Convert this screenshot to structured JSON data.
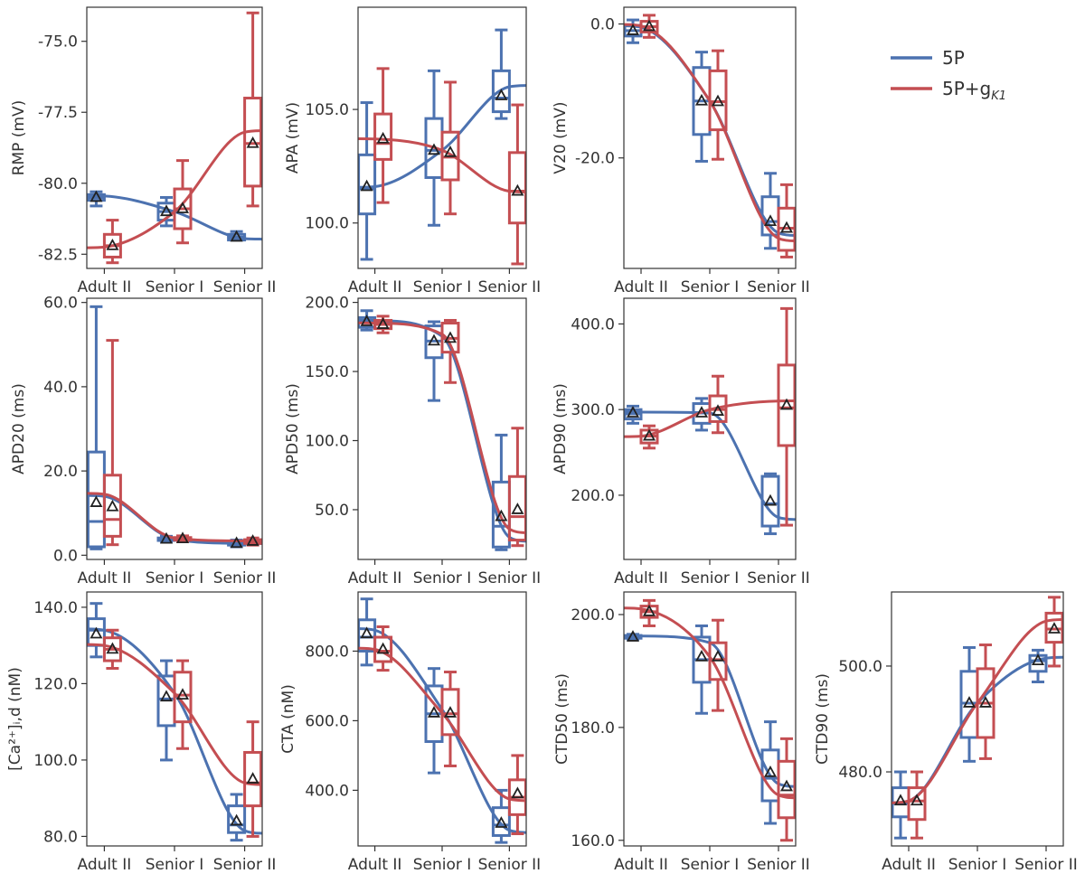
{
  "colors": {
    "5P": "#4c72b0",
    "5P+gK1": "#c44e52",
    "mean_marker": "#222222"
  },
  "legend": {
    "items": [
      {
        "key": "5P",
        "label": "5P"
      },
      {
        "key": "5P+gK1",
        "label": "5P+g",
        "subscript": "K1"
      }
    ]
  },
  "chart_data": [
    {
      "type": "box",
      "panel": "RMP",
      "ylabel": "RMP (mV)",
      "ylim": [
        -83.0,
        -73.8
      ],
      "yticks": [
        -82.5,
        -80.0,
        -77.5,
        -75.0
      ],
      "ytick_labels": [
        "-82.5",
        "-80.0",
        "-77.5",
        "-75.0"
      ],
      "categories": [
        "Adult II",
        "Senior I",
        "Senior II"
      ],
      "series": [
        {
          "name": "5P",
          "boxes": [
            {
              "whislo": -80.8,
              "q1": -80.6,
              "median": -80.5,
              "q3": -80.4,
              "whishi": -80.3,
              "mean": -80.5
            },
            {
              "whislo": -81.5,
              "q1": -81.3,
              "median": -81.0,
              "q3": -80.7,
              "whishi": -80.5,
              "mean": -81.0
            },
            {
              "whislo": -82.0,
              "q1": -82.0,
              "median": -81.9,
              "q3": -81.8,
              "whishi": -81.7,
              "mean": -81.9
            }
          ],
          "trend": [
            -80.45,
            -81.0,
            -81.95
          ]
        },
        {
          "name": "5P+gK1",
          "boxes": [
            {
              "whislo": -82.8,
              "q1": -82.6,
              "median": -82.2,
              "q3": -81.8,
              "whishi": -81.3,
              "mean": -82.2
            },
            {
              "whislo": -82.1,
              "q1": -81.6,
              "median": -80.9,
              "q3": -80.2,
              "whishi": -79.2,
              "mean": -80.9
            },
            {
              "whislo": -80.8,
              "q1": -80.1,
              "median": -78.6,
              "q3": -77.0,
              "whishi": -74.0,
              "mean": -78.6
            }
          ],
          "trend": [
            -82.25,
            -81.0,
            -78.2
          ]
        }
      ]
    },
    {
      "type": "box",
      "panel": "APA",
      "ylabel": "APA (mV)",
      "ylim": [
        98.0,
        109.5
      ],
      "yticks": [
        100.0,
        105.0
      ],
      "ytick_labels": [
        "100.0",
        "105.0"
      ],
      "categories": [
        "Adult II",
        "Senior I",
        "Senior II"
      ],
      "series": [
        {
          "name": "5P",
          "boxes": [
            {
              "whislo": 98.4,
              "q1": 100.4,
              "median": 101.5,
              "q3": 103.0,
              "whishi": 105.3,
              "mean": 101.6
            },
            {
              "whislo": 99.9,
              "q1": 102.0,
              "median": 103.2,
              "q3": 104.6,
              "whishi": 106.7,
              "mean": 103.2
            },
            {
              "whislo": 104.6,
              "q1": 104.9,
              "median": 105.5,
              "q3": 106.7,
              "whishi": 108.5,
              "mean": 105.6
            }
          ],
          "trend": [
            101.6,
            103.2,
            106.0
          ]
        },
        {
          "name": "5P+gK1",
          "boxes": [
            {
              "whislo": 100.9,
              "q1": 102.8,
              "median": 103.5,
              "q3": 104.8,
              "whishi": 106.8,
              "mean": 103.7
            },
            {
              "whislo": 100.4,
              "q1": 101.9,
              "median": 102.9,
              "q3": 104.0,
              "whishi": 106.2,
              "mean": 103.1
            },
            {
              "whislo": 98.2,
              "q1": 100.0,
              "median": 101.4,
              "q3": 103.1,
              "whishi": 105.2,
              "mean": 101.4
            }
          ],
          "trend": [
            103.7,
            103.2,
            101.4
          ]
        }
      ]
    },
    {
      "type": "box",
      "panel": "V20",
      "ylabel": "V20 (mV)",
      "ylim": [
        -36.5,
        2.5
      ],
      "yticks": [
        -20.0,
        0.0
      ],
      "ytick_labels": [
        "-20.0",
        "0.0"
      ],
      "categories": [
        "Adult II",
        "Senior I",
        "Senior II"
      ],
      "series": [
        {
          "name": "5P",
          "boxes": [
            {
              "whislo": -2.8,
              "q1": -1.8,
              "median": -1.0,
              "q3": -0.2,
              "whishi": 0.6,
              "mean": -1.0
            },
            {
              "whislo": -20.5,
              "q1": -16.5,
              "median": -11.5,
              "q3": -6.5,
              "whishi": -4.2,
              "mean": -11.5
            },
            {
              "whislo": -33.5,
              "q1": -31.5,
              "median": -29.5,
              "q3": -25.8,
              "whishi": -22.3,
              "mean": -29.5
            }
          ],
          "trend": [
            -0.5,
            -11.5,
            -31.2
          ]
        },
        {
          "name": "5P+gK1",
          "boxes": [
            {
              "whislo": -2.0,
              "q1": -1.2,
              "median": -0.4,
              "q3": 0.4,
              "whishi": 1.3,
              "mean": -0.4
            },
            {
              "whislo": -20.2,
              "q1": -15.8,
              "median": -11.6,
              "q3": -7.0,
              "whishi": -4.0,
              "mean": -11.6
            },
            {
              "whislo": -34.8,
              "q1": -33.8,
              "median": -30.5,
              "q3": -27.5,
              "whishi": -24.0,
              "mean": -30.5
            }
          ],
          "trend": [
            -0.3,
            -11.5,
            -32.0
          ]
        }
      ]
    },
    {
      "type": "box",
      "panel": "APD20",
      "ylabel": "APD20 (ms)",
      "ylim": [
        -1.0,
        61.0
      ],
      "yticks": [
        0.0,
        20.0,
        40.0,
        60.0
      ],
      "ytick_labels": [
        "0.0",
        "20.0",
        "40.0",
        "60.0"
      ],
      "categories": [
        "Adult II",
        "Senior I",
        "Senior II"
      ],
      "series": [
        {
          "name": "5P",
          "boxes": [
            {
              "whislo": 1.5,
              "q1": 2.0,
              "median": 8.0,
              "q3": 24.5,
              "whishi": 59.0,
              "mean": 12.5
            },
            {
              "whislo": 3.2,
              "q1": 3.5,
              "median": 3.8,
              "q3": 4.1,
              "whishi": 4.5,
              "mean": 3.8
            },
            {
              "whislo": 2.0,
              "q1": 2.4,
              "median": 2.8,
              "q3": 3.2,
              "whishi": 3.6,
              "mean": 2.8
            }
          ],
          "trend": [
            14.0,
            3.8,
            2.8
          ]
        },
        {
          "name": "5P+gK1",
          "boxes": [
            {
              "whislo": 2.5,
              "q1": 4.5,
              "median": 8.5,
              "q3": 19.0,
              "whishi": 51.0,
              "mean": 11.5
            },
            {
              "whislo": 3.2,
              "q1": 3.6,
              "median": 3.9,
              "q3": 4.2,
              "whishi": 4.6,
              "mean": 3.9
            },
            {
              "whislo": 2.4,
              "q1": 2.8,
              "median": 3.3,
              "q3": 3.7,
              "whishi": 4.1,
              "mean": 3.3
            }
          ],
          "trend": [
            14.5,
            4.1,
            3.4
          ]
        }
      ]
    },
    {
      "type": "box",
      "panel": "APD50",
      "ylabel": "APD50 (ms)",
      "ylim": [
        14.0,
        203.0
      ],
      "yticks": [
        50.0,
        100.0,
        150.0,
        200.0
      ],
      "ytick_labels": [
        "50.0",
        "100.0",
        "150.0",
        "200.0"
      ],
      "categories": [
        "Adult II",
        "Senior I",
        "Senior II"
      ],
      "series": [
        {
          "name": "5P",
          "boxes": [
            {
              "whislo": 180.0,
              "q1": 182.0,
              "median": 185.5,
              "q3": 189.0,
              "whishi": 194.0,
              "mean": 186.0
            },
            {
              "whislo": 129.0,
              "q1": 160.0,
              "median": 172.0,
              "q3": 183.0,
              "whishi": 186.0,
              "mean": 172.0
            },
            {
              "whislo": 21.0,
              "q1": 23.0,
              "median": 38.0,
              "q3": 70.0,
              "whishi": 104.0,
              "mean": 45.0
            }
          ],
          "trend": [
            187.0,
            175.5,
            30.0
          ]
        },
        {
          "name": "5P+gK1",
          "boxes": [
            {
              "whislo": 178.0,
              "q1": 181.0,
              "median": 184.0,
              "q3": 187.0,
              "whishi": 190.0,
              "mean": 184.0
            },
            {
              "whislo": 142.0,
              "q1": 164.0,
              "median": 174.0,
              "q3": 185.0,
              "whishi": 187.0,
              "mean": 174.0
            },
            {
              "whislo": 24.0,
              "q1": 28.0,
              "median": 45.0,
              "q3": 74.0,
              "whishi": 109.0,
              "mean": 50.0
            }
          ],
          "trend": [
            185.0,
            177.0,
            36.0
          ]
        }
      ]
    },
    {
      "type": "box",
      "panel": "APD90",
      "ylabel": "APD90 (ms)",
      "ylim": [
        125.0,
        430.0
      ],
      "yticks": [
        200.0,
        300.0,
        400.0
      ],
      "ytick_labels": [
        "200.0",
        "300.0",
        "400.0"
      ],
      "categories": [
        "Adult II",
        "Senior I",
        "Senior II"
      ],
      "series": [
        {
          "name": "5P",
          "boxes": [
            {
              "whislo": 284.0,
              "q1": 289.0,
              "median": 295.0,
              "q3": 300.0,
              "whishi": 304.0,
              "mean": 296.0
            },
            {
              "whislo": 276.0,
              "q1": 284.0,
              "median": 296.0,
              "q3": 307.0,
              "whishi": 313.0,
              "mean": 296.0
            },
            {
              "whislo": 155.0,
              "q1": 164.0,
              "median": 190.0,
              "q3": 222.0,
              "whishi": 225.0,
              "mean": 193.0
            }
          ],
          "trend": [
            297.0,
            296.0,
            174.0
          ]
        },
        {
          "name": "5P+gK1",
          "boxes": [
            {
              "whislo": 255.0,
              "q1": 261.0,
              "median": 269.0,
              "q3": 276.0,
              "whishi": 281.0,
              "mean": 269.0
            },
            {
              "whislo": 273.0,
              "q1": 286.0,
              "median": 300.0,
              "q3": 316.0,
              "whishi": 339.0,
              "mean": 298.0
            },
            {
              "whislo": 165.0,
              "q1": 258.0,
              "median": 302.0,
              "q3": 352.0,
              "whishi": 418.0,
              "mean": 305.0
            }
          ],
          "trend": [
            269.0,
            300.0,
            310.0
          ]
        }
      ]
    },
    {
      "type": "box",
      "panel": "CaD",
      "ylabel": "[Ca²⁺]ᵢ,d (nM)",
      "ylim": [
        77.5,
        144.0
      ],
      "yticks": [
        80.0,
        100.0,
        120.0,
        140.0
      ],
      "ytick_labels": [
        "80.0",
        "100.0",
        "120.0",
        "140.0"
      ],
      "categories": [
        "Adult II",
        "Senior I",
        "Senior II"
      ],
      "series": [
        {
          "name": "5P",
          "boxes": [
            {
              "whislo": 127.0,
              "q1": 130.0,
              "median": 134.0,
              "q3": 137.0,
              "whishi": 141.0,
              "mean": 133.0
            },
            {
              "whislo": 100.0,
              "q1": 109.0,
              "median": 116.0,
              "q3": 122.0,
              "whishi": 126.0,
              "mean": 116.5
            },
            {
              "whislo": 79.0,
              "q1": 81.0,
              "median": 83.0,
              "q3": 88.0,
              "whishi": 91.0,
              "mean": 84.0
            }
          ],
          "trend": [
            134.0,
            117.5,
            81.5
          ]
        },
        {
          "name": "5P+gK1",
          "boxes": [
            {
              "whislo": 124.0,
              "q1": 126.0,
              "median": 129.0,
              "q3": 132.0,
              "whishi": 134.0,
              "mean": 129.0
            },
            {
              "whislo": 103.0,
              "q1": 110.0,
              "median": 117.0,
              "q3": 123.0,
              "whishi": 126.0,
              "mean": 117.0
            },
            {
              "whislo": 80.0,
              "q1": 88.0,
              "median": 94.0,
              "q3": 102.0,
              "whishi": 110.0,
              "mean": 95.0
            }
          ],
          "trend": [
            130.0,
            117.5,
            94.0
          ]
        }
      ]
    },
    {
      "type": "box",
      "panel": "CTA",
      "ylabel": "CTA (nM)",
      "ylim": [
        240.0,
        970.0
      ],
      "yticks": [
        400.0,
        600.0,
        800.0
      ],
      "ytick_labels": [
        "400.0",
        "600.0",
        "800.0"
      ],
      "categories": [
        "Adult II",
        "Senior I",
        "Senior II"
      ],
      "series": [
        {
          "name": "5P",
          "boxes": [
            {
              "whislo": 760.0,
              "q1": 800.0,
              "median": 840.0,
              "q3": 890.0,
              "whishi": 950.0,
              "mean": 850.0
            },
            {
              "whislo": 450.0,
              "q1": 540.0,
              "median": 620.0,
              "q3": 700.0,
              "whishi": 750.0,
              "mean": 622.0
            },
            {
              "whislo": 250.0,
              "q1": 270.0,
              "median": 300.0,
              "q3": 350.0,
              "whishi": 400.0,
              "mean": 305.0
            }
          ],
          "trend": [
            860.0,
            632.0,
            285.0
          ]
        },
        {
          "name": "5P+gK1",
          "boxes": [
            {
              "whislo": 745.0,
              "q1": 770.0,
              "median": 800.0,
              "q3": 840.0,
              "whishi": 870.0,
              "mean": 805.0
            },
            {
              "whislo": 470.0,
              "q1": 560.0,
              "median": 620.0,
              "q3": 690.0,
              "whishi": 740.0,
              "mean": 622.0
            },
            {
              "whislo": 275.0,
              "q1": 330.0,
              "median": 380.0,
              "q3": 430.0,
              "whishi": 500.0,
              "mean": 390.0
            }
          ],
          "trend": [
            805.0,
            622.0,
            375.0
          ]
        }
      ]
    },
    {
      "type": "box",
      "panel": "CTD50",
      "ylabel": "CTD50 (ms)",
      "ylim": [
        159.0,
        204.0
      ],
      "yticks": [
        160.0,
        180.0,
        200.0
      ],
      "ytick_labels": [
        "160.0",
        "180.0",
        "200.0"
      ],
      "categories": [
        "Adult II",
        "Senior I",
        "Senior II"
      ],
      "series": [
        {
          "name": "5P",
          "boxes": [
            {
              "whislo": 195.6,
              "q1": 195.8,
              "median": 196.0,
              "q3": 196.3,
              "whishi": 196.5,
              "mean": 196.0
            },
            {
              "whislo": 182.5,
              "q1": 188.0,
              "median": 192.0,
              "q3": 196.0,
              "whishi": 198.0,
              "mean": 192.5
            },
            {
              "whislo": 163.0,
              "q1": 167.0,
              "median": 171.0,
              "q3": 176.0,
              "whishi": 181.0,
              "mean": 172.0
            }
          ],
          "trend": [
            196.2,
            195.0,
            170.0
          ]
        },
        {
          "name": "5P+gK1",
          "boxes": [
            {
              "whislo": 198.0,
              "q1": 199.5,
              "median": 200.5,
              "q3": 201.5,
              "whishi": 202.5,
              "mean": 200.5
            },
            {
              "whislo": 183.0,
              "q1": 188.5,
              "median": 192.0,
              "q3": 195.0,
              "whishi": 199.0,
              "mean": 192.5
            },
            {
              "whislo": 160.0,
              "q1": 164.0,
              "median": 168.0,
              "q3": 174.0,
              "whishi": 178.0,
              "mean": 169.5
            }
          ],
          "trend": [
            201.0,
            192.5,
            168.0
          ]
        }
      ]
    },
    {
      "type": "box",
      "panel": "CTD90",
      "ylabel": "CTD90 (ms)",
      "ylim": [
        466.0,
        514.0
      ],
      "yticks": [
        480.0,
        500.0
      ],
      "ytick_labels": [
        "480.0",
        "500.0"
      ],
      "categories": [
        "Adult II",
        "Senior I",
        "Senior II"
      ],
      "series": [
        {
          "name": "5P",
          "boxes": [
            {
              "whislo": 467.5,
              "q1": 471.5,
              "median": 474.0,
              "q3": 477.0,
              "whishi": 480.0,
              "mean": 474.5
            },
            {
              "whislo": 482.0,
              "q1": 486.5,
              "median": 493.0,
              "q3": 499.0,
              "whishi": 503.5,
              "mean": 493.0
            },
            {
              "whislo": 497.0,
              "q1": 499.0,
              "median": 501.0,
              "q3": 502.0,
              "whishi": 503.0,
              "mean": 501.0
            }
          ],
          "trend": [
            474.5,
            493.0,
            501.5
          ]
        },
        {
          "name": "5P+gK1",
          "boxes": [
            {
              "whislo": 467.5,
              "q1": 471.0,
              "median": 474.5,
              "q3": 477.0,
              "whishi": 480.0,
              "mean": 474.5
            },
            {
              "whislo": 482.5,
              "q1": 486.5,
              "median": 493.0,
              "q3": 499.5,
              "whishi": 504.0,
              "mean": 493.0
            },
            {
              "whislo": 500.0,
              "q1": 504.5,
              "median": 507.0,
              "q3": 510.0,
              "whishi": 513.0,
              "mean": 507.0
            }
          ],
          "trend": [
            474.5,
            493.0,
            508.5
          ]
        }
      ]
    }
  ]
}
